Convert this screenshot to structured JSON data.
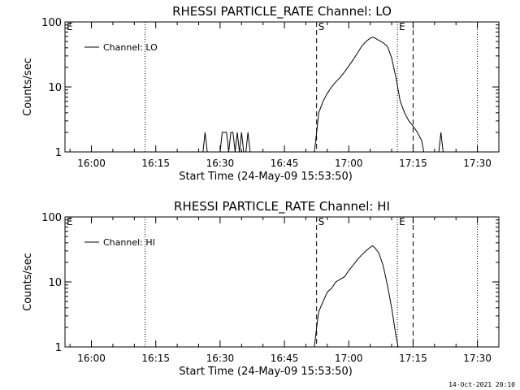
{
  "chart_data": [
    {
      "type": "line",
      "title": "RHESSI PARTICLE_RATE Channel: LO",
      "xlabel": "Start Time (24-May-09 15:53:50)",
      "ylabel": "Counts/sec",
      "yscale": "log",
      "ylim": [
        1,
        100
      ],
      "xlim": [
        "15:53:50",
        "17:35:00"
      ],
      "xticks": [
        "16:00",
        "16:15",
        "16:30",
        "16:45",
        "17:00",
        "17:15",
        "17:30"
      ],
      "yticks": [
        "1",
        "10",
        "100"
      ],
      "legend": "top-left",
      "legend_label": "Channel: LO",
      "markers": [
        {
          "label": "E",
          "time": "15:53:50",
          "style": "none"
        },
        {
          "label": "",
          "time": "16:12:30",
          "style": "dotted"
        },
        {
          "label": "S",
          "time": "16:52:30",
          "style": "dashed"
        },
        {
          "label": "E",
          "time": "17:11:20",
          "style": "dotted"
        },
        {
          "label": "",
          "time": "17:15:00",
          "style": "dashed"
        },
        {
          "label": "",
          "time": "17:30:00",
          "style": "dotted"
        }
      ],
      "series": [
        {
          "x": [
            "16:26:00",
            "16:26:30",
            "16:27:00",
            "16:27:30",
            "16:28:00",
            "16:28:30",
            "16:29:00",
            "16:29:30",
            "16:30:00",
            "16:30:30",
            "16:31:00",
            "16:31:30",
            "16:32:00",
            "16:32:30",
            "16:33:00",
            "16:33:30",
            "16:34:00",
            "16:34:30",
            "16:35:00",
            "16:35:30",
            "16:36:00",
            "16:36:30",
            "16:37:00",
            "16:52:00",
            "16:52:30",
            "16:53:00",
            "16:54:00",
            "16:55:00",
            "16:56:00",
            "16:57:00",
            "16:58:00",
            "16:59:00",
            "17:00:00",
            "17:01:00",
            "17:02:00",
            "17:03:00",
            "17:04:00",
            "17:05:00",
            "17:05:30",
            "17:06:00",
            "17:07:00",
            "17:08:00",
            "17:09:00",
            "17:10:00",
            "17:11:00",
            "17:12:00",
            "17:13:00",
            "17:14:00",
            "17:15:00",
            "17:16:00",
            "17:17:00",
            "17:17:30",
            "17:18:00",
            "17:21:00",
            "17:21:30",
            "17:22:00"
          ],
          "y": [
            1,
            2,
            1,
            1,
            1,
            1,
            1,
            1,
            1,
            2,
            2,
            2,
            1,
            2,
            2,
            1,
            2,
            1,
            2,
            1,
            1,
            2,
            1,
            1,
            2,
            4,
            6,
            8,
            10,
            12,
            14,
            17,
            21,
            26,
            33,
            42,
            50,
            56,
            58,
            57,
            52,
            48,
            42,
            28,
            14,
            6,
            4,
            3,
            2.5,
            2,
            1.5,
            1,
            1,
            1,
            2,
            1
          ]
        }
      ]
    },
    {
      "type": "line",
      "title": "RHESSI PARTICLE_RATE Channel: HI",
      "xlabel": "Start Time (24-May-09 15:53:50)",
      "ylabel": "Counts/sec",
      "yscale": "log",
      "ylim": [
        1,
        100
      ],
      "xlim": [
        "15:53:50",
        "17:35:00"
      ],
      "xticks": [
        "16:00",
        "16:15",
        "16:30",
        "16:45",
        "17:00",
        "17:15",
        "17:30"
      ],
      "yticks": [
        "1",
        "10",
        "100"
      ],
      "legend": "top-left",
      "legend_label": "Channel: HI",
      "markers": [
        {
          "label": "E",
          "time": "15:53:50",
          "style": "none"
        },
        {
          "label": "",
          "time": "16:12:30",
          "style": "dotted"
        },
        {
          "label": "S",
          "time": "16:52:30",
          "style": "dashed"
        },
        {
          "label": "E",
          "time": "17:11:20",
          "style": "dotted"
        },
        {
          "label": "",
          "time": "17:15:00",
          "style": "dashed"
        },
        {
          "label": "",
          "time": "17:30:00",
          "style": "dotted"
        }
      ],
      "series": [
        {
          "x": [
            "16:52:00",
            "16:52:30",
            "16:53:00",
            "16:54:00",
            "16:55:00",
            "16:56:00",
            "16:57:00",
            "16:58:00",
            "16:59:00",
            "17:00:00",
            "17:01:00",
            "17:02:00",
            "17:03:00",
            "17:04:00",
            "17:05:00",
            "17:05:30",
            "17:06:00",
            "17:07:00",
            "17:08:00",
            "17:09:00",
            "17:10:00",
            "17:11:00",
            "17:11:30"
          ],
          "y": [
            1,
            2,
            3.5,
            5,
            7,
            8,
            10,
            11,
            12,
            15,
            18,
            22,
            26,
            30,
            34,
            36,
            34,
            28,
            18,
            9,
            4,
            1.5,
            1
          ]
        }
      ]
    }
  ],
  "timestamp": "14-Oct-2021 20:10"
}
